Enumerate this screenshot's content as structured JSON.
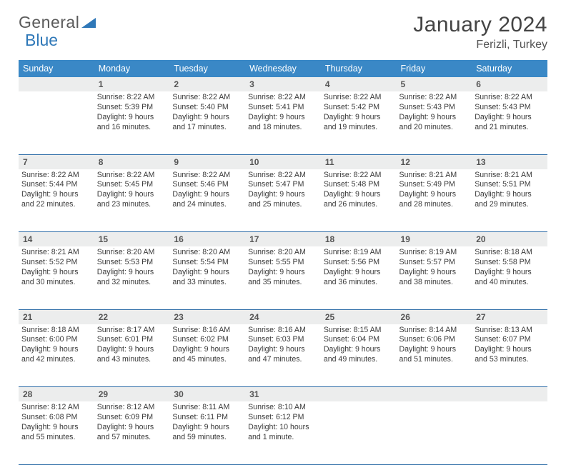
{
  "brand": {
    "part1": "General",
    "part2": "Blue"
  },
  "title": "January 2024",
  "location": "Ferizli, Turkey",
  "header_bg": "#3a88c6",
  "rule_color": "#2f6ea8",
  "daynum_bg": "#eceded",
  "days": [
    "Sunday",
    "Monday",
    "Tuesday",
    "Wednesday",
    "Thursday",
    "Friday",
    "Saturday"
  ],
  "weeks": [
    {
      "nums": [
        "",
        "1",
        "2",
        "3",
        "4",
        "5",
        "6"
      ],
      "cells": [
        {},
        {
          "sunrise": "8:22 AM",
          "sunset": "5:39 PM",
          "daylight": "9 hours and 16 minutes."
        },
        {
          "sunrise": "8:22 AM",
          "sunset": "5:40 PM",
          "daylight": "9 hours and 17 minutes."
        },
        {
          "sunrise": "8:22 AM",
          "sunset": "5:41 PM",
          "daylight": "9 hours and 18 minutes."
        },
        {
          "sunrise": "8:22 AM",
          "sunset": "5:42 PM",
          "daylight": "9 hours and 19 minutes."
        },
        {
          "sunrise": "8:22 AM",
          "sunset": "5:43 PM",
          "daylight": "9 hours and 20 minutes."
        },
        {
          "sunrise": "8:22 AM",
          "sunset": "5:43 PM",
          "daylight": "9 hours and 21 minutes."
        }
      ]
    },
    {
      "nums": [
        "7",
        "8",
        "9",
        "10",
        "11",
        "12",
        "13"
      ],
      "cells": [
        {
          "sunrise": "8:22 AM",
          "sunset": "5:44 PM",
          "daylight": "9 hours and 22 minutes."
        },
        {
          "sunrise": "8:22 AM",
          "sunset": "5:45 PM",
          "daylight": "9 hours and 23 minutes."
        },
        {
          "sunrise": "8:22 AM",
          "sunset": "5:46 PM",
          "daylight": "9 hours and 24 minutes."
        },
        {
          "sunrise": "8:22 AM",
          "sunset": "5:47 PM",
          "daylight": "9 hours and 25 minutes."
        },
        {
          "sunrise": "8:22 AM",
          "sunset": "5:48 PM",
          "daylight": "9 hours and 26 minutes."
        },
        {
          "sunrise": "8:21 AM",
          "sunset": "5:49 PM",
          "daylight": "9 hours and 28 minutes."
        },
        {
          "sunrise": "8:21 AM",
          "sunset": "5:51 PM",
          "daylight": "9 hours and 29 minutes."
        }
      ]
    },
    {
      "nums": [
        "14",
        "15",
        "16",
        "17",
        "18",
        "19",
        "20"
      ],
      "cells": [
        {
          "sunrise": "8:21 AM",
          "sunset": "5:52 PM",
          "daylight": "9 hours and 30 minutes."
        },
        {
          "sunrise": "8:20 AM",
          "sunset": "5:53 PM",
          "daylight": "9 hours and 32 minutes."
        },
        {
          "sunrise": "8:20 AM",
          "sunset": "5:54 PM",
          "daylight": "9 hours and 33 minutes."
        },
        {
          "sunrise": "8:20 AM",
          "sunset": "5:55 PM",
          "daylight": "9 hours and 35 minutes."
        },
        {
          "sunrise": "8:19 AM",
          "sunset": "5:56 PM",
          "daylight": "9 hours and 36 minutes."
        },
        {
          "sunrise": "8:19 AM",
          "sunset": "5:57 PM",
          "daylight": "9 hours and 38 minutes."
        },
        {
          "sunrise": "8:18 AM",
          "sunset": "5:58 PM",
          "daylight": "9 hours and 40 minutes."
        }
      ]
    },
    {
      "nums": [
        "21",
        "22",
        "23",
        "24",
        "25",
        "26",
        "27"
      ],
      "cells": [
        {
          "sunrise": "8:18 AM",
          "sunset": "6:00 PM",
          "daylight": "9 hours and 42 minutes."
        },
        {
          "sunrise": "8:17 AM",
          "sunset": "6:01 PM",
          "daylight": "9 hours and 43 minutes."
        },
        {
          "sunrise": "8:16 AM",
          "sunset": "6:02 PM",
          "daylight": "9 hours and 45 minutes."
        },
        {
          "sunrise": "8:16 AM",
          "sunset": "6:03 PM",
          "daylight": "9 hours and 47 minutes."
        },
        {
          "sunrise": "8:15 AM",
          "sunset": "6:04 PM",
          "daylight": "9 hours and 49 minutes."
        },
        {
          "sunrise": "8:14 AM",
          "sunset": "6:06 PM",
          "daylight": "9 hours and 51 minutes."
        },
        {
          "sunrise": "8:13 AM",
          "sunset": "6:07 PM",
          "daylight": "9 hours and 53 minutes."
        }
      ]
    },
    {
      "nums": [
        "28",
        "29",
        "30",
        "31",
        "",
        "",
        ""
      ],
      "cells": [
        {
          "sunrise": "8:12 AM",
          "sunset": "6:08 PM",
          "daylight": "9 hours and 55 minutes."
        },
        {
          "sunrise": "8:12 AM",
          "sunset": "6:09 PM",
          "daylight": "9 hours and 57 minutes."
        },
        {
          "sunrise": "8:11 AM",
          "sunset": "6:11 PM",
          "daylight": "9 hours and 59 minutes."
        },
        {
          "sunrise": "8:10 AM",
          "sunset": "6:12 PM",
          "daylight": "10 hours and 1 minute."
        },
        {},
        {},
        {}
      ]
    }
  ]
}
